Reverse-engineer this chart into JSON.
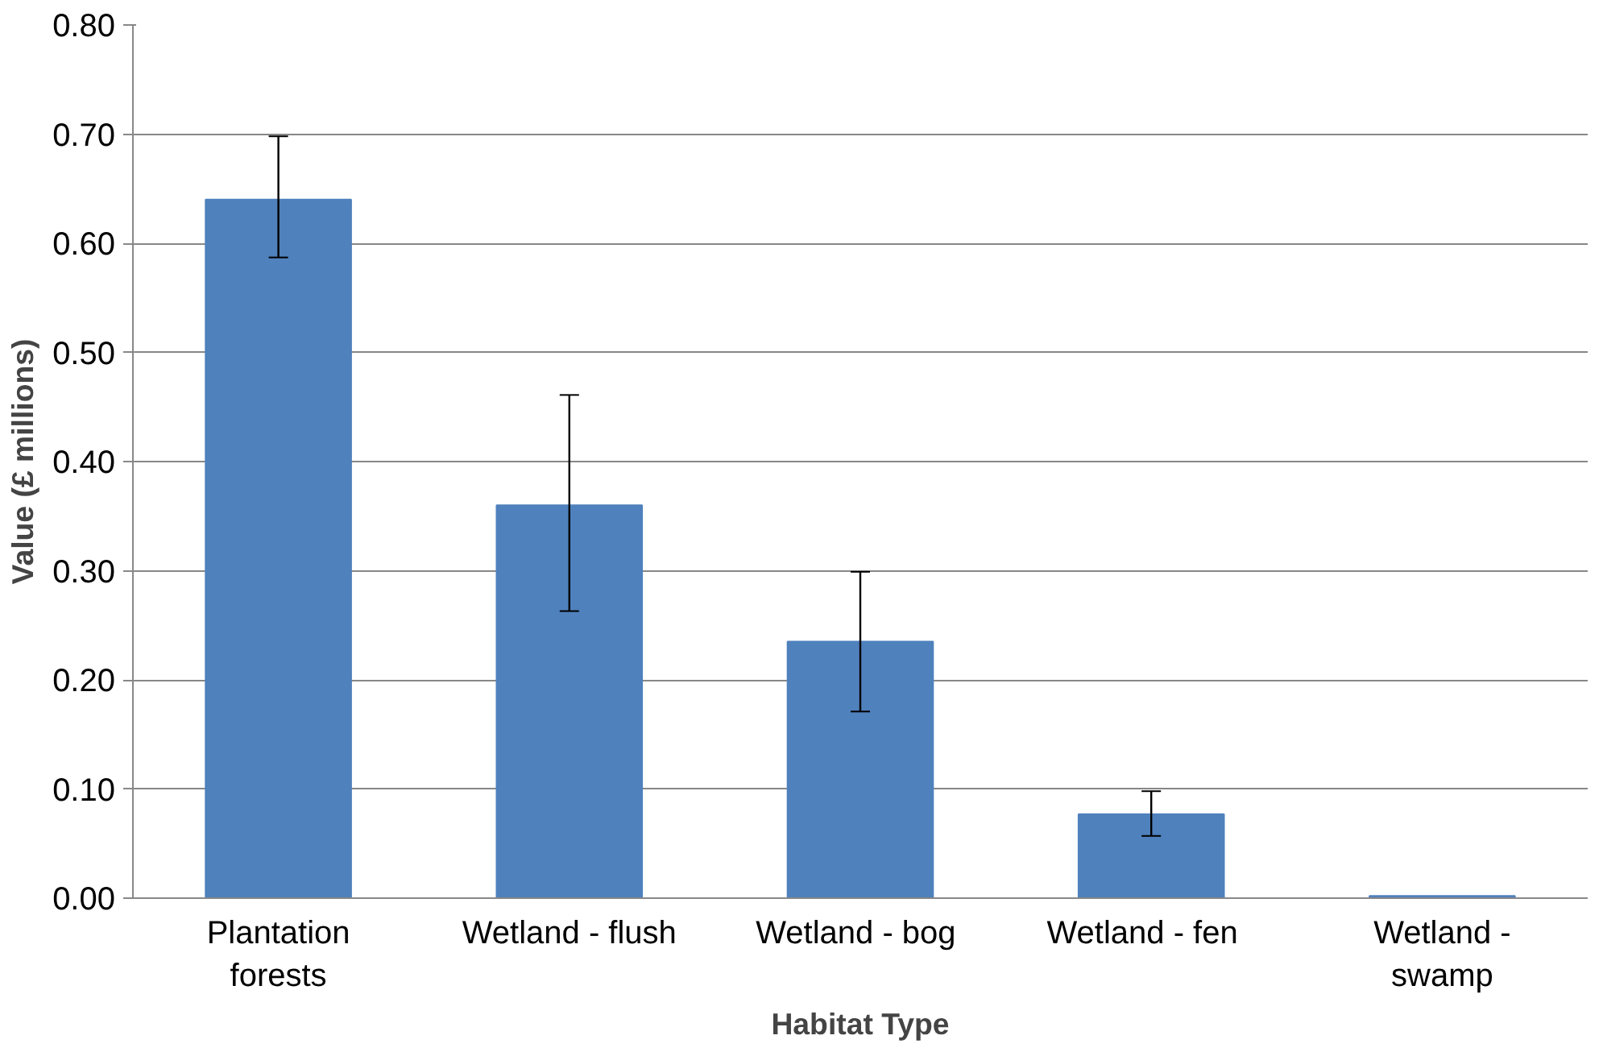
{
  "chart_data": {
    "type": "bar",
    "xlabel": "Habitat Type",
    "ylabel": "Value (£ millions)",
    "categories": [
      "Plantation\nforests",
      "Wetland - flush",
      "Wetland -  bog",
      "Wetland -   fen",
      "Wetland -\nswamp"
    ],
    "values": [
      0.64,
      0.36,
      0.235,
      0.077,
      0.002
    ],
    "errors": [
      [
        0.587,
        0.698
      ],
      [
        0.263,
        0.461
      ],
      [
        0.171,
        0.299
      ],
      [
        0.057,
        0.098
      ],
      null
    ],
    "color": "#4f81bd",
    "ylim": [
      0,
      0.8
    ],
    "yticks": [
      {
        "value": 0,
        "label": "0.00"
      },
      {
        "value": 0.1,
        "label": "0.10"
      },
      {
        "value": 0.2,
        "label": "0.20"
      },
      {
        "value": 0.3,
        "label": "0.30"
      },
      {
        "value": 0.4,
        "label": "0.40"
      },
      {
        "value": 0.5,
        "label": "0.50"
      },
      {
        "value": 0.6,
        "label": "0.60"
      },
      {
        "value": 0.7,
        "label": "0.70"
      },
      {
        "value": 0.8,
        "label": "0.80"
      }
    ],
    "grid": "y"
  }
}
